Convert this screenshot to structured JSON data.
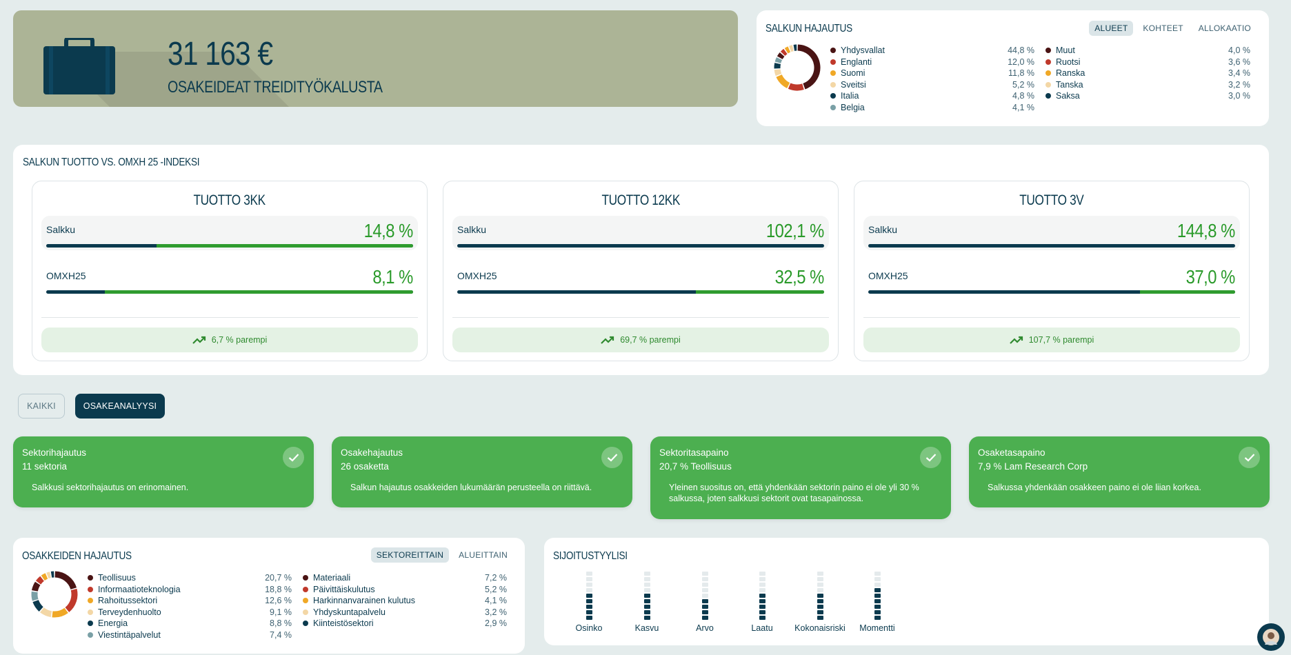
{
  "hero": {
    "amount": "31 163 €",
    "subtitle": "OSAKEIDEAT TREIDITYÖKALUSTA",
    "icon": "briefcase-icon"
  },
  "allocation": {
    "title": "SALKUN HAJAUTUS",
    "tabs": [
      "ALUEET",
      "KOHTEET",
      "ALLOKAATIO"
    ],
    "active_tab": "ALUEET",
    "left": [
      {
        "name": "Yhdysvallat",
        "pct": "44,8 %",
        "color": "#4a1414"
      },
      {
        "name": "Englanti",
        "pct": "12,0 %",
        "color": "#c0392b"
      },
      {
        "name": "Suomi",
        "pct": "11,8 %",
        "color": "#f0a826"
      },
      {
        "name": "Sveitsi",
        "pct": "5,2 %",
        "color": "#f3d7a6"
      },
      {
        "name": "Italia",
        "pct": "4,8 %",
        "color": "#0b3a4e"
      },
      {
        "name": "Belgia",
        "pct": "4,1 %",
        "color": "#7aa0a6"
      }
    ],
    "right": [
      {
        "name": "Muut",
        "pct": "4,0 %",
        "color": "#4a1414"
      },
      {
        "name": "Ruotsi",
        "pct": "3,6 %",
        "color": "#c0392b"
      },
      {
        "name": "Ranska",
        "pct": "3,4 %",
        "color": "#f0a826"
      },
      {
        "name": "Tanska",
        "pct": "3,2 %",
        "color": "#f3d7a6"
      },
      {
        "name": "Saksa",
        "pct": "3,0 %",
        "color": "#0b3a4e"
      }
    ]
  },
  "returns": {
    "title": "SALKUN TUOTTO VS. OMXH 25 -INDEKSI",
    "boxes": [
      {
        "title": "TUOTTO 3KK",
        "portfolio_label": "Salkku",
        "portfolio_value": "14,8 %",
        "portfolio_share": 0.7,
        "index_label": "OMXH25",
        "index_value": "8,1 %",
        "index_share": 0.84,
        "better": "6,7 % parempi"
      },
      {
        "title": "TUOTTO 12KK",
        "portfolio_label": "Salkku",
        "portfolio_value": "102,1 %",
        "portfolio_share": 0.0,
        "index_label": "OMXH25",
        "index_value": "32,5 %",
        "index_share": 0.35,
        "better": "69,7 % parempi"
      },
      {
        "title": "TUOTTO 3V",
        "portfolio_label": "Salkku",
        "portfolio_value": "144,8 %",
        "portfolio_share": 0.0,
        "index_label": "OMXH25",
        "index_value": "37,0 %",
        "index_share": 0.26,
        "better": "107,7 % parempi"
      }
    ]
  },
  "filters": {
    "all": "KAIKKI",
    "analysis": "OSAKEANALYYSI"
  },
  "analysis": [
    {
      "title": "Sektorihajautus",
      "value": "11 sektoria",
      "desc": "Salkkusi sektorihajautus on erinomainen."
    },
    {
      "title": "Osakehajautus",
      "value": "26 osaketta",
      "desc": "Salkun hajautus osakkeiden lukumäärän perusteella on riittävä."
    },
    {
      "title": "Sektoritasapaino",
      "value": "20,7 % Teollisuus",
      "desc": "Yleinen suositus on, että yhdenkään sektorin paino ei ole yli 30 % salkussa, joten salkkusi sektorit ovat tasapainossa."
    },
    {
      "title": "Osaketasapaino",
      "value": "7,9 % Lam Research Corp",
      "desc": "Salkussa yhdenkään osakkeen paino ei ole liian korkea."
    }
  ],
  "stocks": {
    "title": "OSAKKEIDEN HAJAUTUS",
    "tabs": [
      "SEKTOREITTAIN",
      "ALUEITTAIN"
    ],
    "active_tab": "SEKTOREITTAIN",
    "left": [
      {
        "name": "Teollisuus",
        "pct": "20,7 %",
        "color": "#4a1414"
      },
      {
        "name": "Informaatioteknologia",
        "pct": "18,8 %",
        "color": "#c0392b"
      },
      {
        "name": "Rahoitussektori",
        "pct": "12,6 %",
        "color": "#f0a826"
      },
      {
        "name": "Terveydenhuolto",
        "pct": "9,1 %",
        "color": "#f3d7a6"
      },
      {
        "name": "Energia",
        "pct": "8,8 %",
        "color": "#0b3a4e"
      },
      {
        "name": "Viestintäpalvelut",
        "pct": "7,4 %",
        "color": "#7aa0a6"
      }
    ],
    "right": [
      {
        "name": "Materiaali",
        "pct": "7,2 %",
        "color": "#4a1414"
      },
      {
        "name": "Päivittäiskulutus",
        "pct": "5,2 %",
        "color": "#c0392b"
      },
      {
        "name": "Harkinnanvarainen kulutus",
        "pct": "4,1 %",
        "color": "#f0a826"
      },
      {
        "name": "Yhdyskuntapalvelu",
        "pct": "3,2 %",
        "color": "#f3d7a6"
      },
      {
        "name": "Kiinteistösektori",
        "pct": "2,9 %",
        "color": "#0b3a4e"
      }
    ]
  },
  "style": {
    "title": "SIJOITUSTYYLISI",
    "items": [
      {
        "label": "Osinko",
        "level": 5
      },
      {
        "label": "Kasvu",
        "level": 5
      },
      {
        "label": "Arvo",
        "level": 4
      },
      {
        "label": "Laatu",
        "level": 5
      },
      {
        "label": "Kokonaisriski",
        "level": 5
      },
      {
        "label": "Momentti",
        "level": 6
      }
    ],
    "segments": 9
  },
  "colors": {
    "navy": "#0b3a4e",
    "green": "#4caf50",
    "accent_green": "#2a9a2a",
    "hero": "#acb496"
  }
}
